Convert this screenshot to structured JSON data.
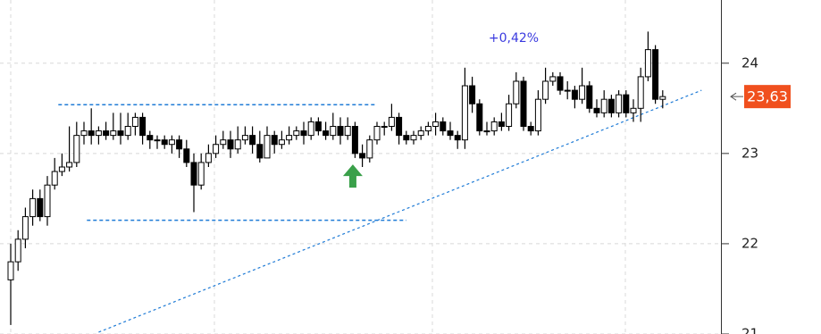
{
  "chart_data": {
    "type": "candlestick",
    "annotation": "+0,42%",
    "open": [
      21.6,
      21.8,
      22.05,
      22.3,
      22.5,
      22.3,
      22.65,
      22.8,
      22.85,
      22.9,
      23.2,
      23.25,
      23.2,
      23.25,
      23.2,
      23.25,
      23.2,
      23.3,
      23.4,
      23.2,
      23.15,
      23.15,
      23.1,
      23.15,
      23.05,
      22.9,
      22.65,
      22.9,
      23.0,
      23.1,
      23.15,
      23.05,
      23.15,
      23.2,
      23.1,
      22.95,
      23.2,
      23.1,
      23.15,
      23.2,
      23.25,
      23.2,
      23.35,
      23.25,
      23.2,
      23.3,
      23.2,
      23.3,
      23.0,
      22.95,
      23.15,
      23.3,
      23.3,
      23.4,
      23.2,
      23.15,
      23.2,
      23.25,
      23.3,
      23.35,
      23.25,
      23.2,
      23.15,
      23.75,
      23.55,
      23.25,
      23.25,
      23.35,
      23.3,
      23.55,
      23.8,
      23.3,
      23.25,
      23.6,
      23.8,
      23.85,
      23.7,
      23.7,
      23.6,
      23.75,
      23.5,
      23.45,
      23.6,
      23.45,
      23.65,
      23.45,
      23.5,
      23.85,
      24.15,
      23.6
    ],
    "high": [
      22.0,
      22.15,
      22.4,
      22.6,
      22.6,
      22.75,
      22.95,
      23.0,
      23.3,
      23.35,
      23.35,
      23.5,
      23.3,
      23.35,
      23.45,
      23.45,
      23.45,
      23.45,
      23.45,
      23.25,
      23.2,
      23.2,
      23.2,
      23.2,
      23.15,
      23.0,
      23.0,
      23.1,
      23.2,
      23.25,
      23.25,
      23.3,
      23.3,
      23.3,
      23.25,
      23.3,
      23.25,
      23.25,
      23.3,
      23.3,
      23.35,
      23.4,
      23.4,
      23.35,
      23.45,
      23.4,
      23.4,
      23.35,
      23.1,
      23.2,
      23.35,
      23.35,
      23.55,
      23.45,
      23.25,
      23.25,
      23.3,
      23.35,
      23.45,
      23.4,
      23.35,
      23.25,
      23.95,
      23.85,
      23.6,
      23.35,
      23.4,
      23.45,
      23.65,
      23.9,
      23.85,
      23.35,
      23.7,
      23.95,
      23.9,
      23.9,
      23.8,
      23.75,
      23.95,
      23.8,
      23.6,
      23.7,
      23.65,
      23.7,
      23.7,
      23.6,
      23.95,
      24.35,
      24.2,
      23.7
    ],
    "low": [
      21.1,
      21.7,
      21.95,
      22.2,
      22.25,
      22.2,
      22.6,
      22.75,
      22.8,
      22.85,
      23.1,
      23.1,
      23.1,
      23.15,
      23.15,
      23.1,
      23.15,
      23.2,
      23.1,
      23.05,
      23.05,
      23.05,
      23.0,
      22.95,
      22.85,
      22.35,
      22.6,
      22.85,
      22.95,
      23.05,
      22.95,
      23.0,
      23.1,
      23.0,
      22.9,
      22.95,
      23.0,
      23.05,
      23.1,
      23.15,
      23.1,
      23.15,
      23.2,
      23.15,
      23.15,
      23.1,
      23.15,
      22.95,
      22.85,
      22.9,
      23.1,
      23.2,
      23.25,
      23.1,
      23.1,
      23.1,
      23.15,
      23.2,
      23.2,
      23.2,
      23.15,
      23.05,
      23.05,
      23.45,
      23.2,
      23.2,
      23.2,
      23.25,
      23.25,
      23.5,
      23.25,
      23.2,
      23.2,
      23.55,
      23.75,
      23.65,
      23.6,
      23.5,
      23.55,
      23.45,
      23.4,
      23.4,
      23.4,
      23.4,
      23.4,
      23.35,
      23.35,
      23.8,
      23.55,
      23.5
    ],
    "close": [
      21.8,
      22.05,
      22.3,
      22.5,
      22.3,
      22.65,
      22.8,
      22.85,
      22.9,
      23.2,
      23.25,
      23.2,
      23.25,
      23.2,
      23.25,
      23.2,
      23.3,
      23.4,
      23.2,
      23.15,
      23.15,
      23.1,
      23.15,
      23.05,
      22.9,
      22.65,
      22.9,
      23.0,
      23.1,
      23.15,
      23.05,
      23.15,
      23.2,
      23.1,
      22.95,
      23.2,
      23.1,
      23.15,
      23.2,
      23.25,
      23.2,
      23.35,
      23.25,
      23.2,
      23.3,
      23.2,
      23.3,
      23.0,
      22.95,
      23.15,
      23.3,
      23.3,
      23.4,
      23.2,
      23.15,
      23.2,
      23.25,
      23.3,
      23.35,
      23.25,
      23.2,
      23.15,
      23.75,
      23.55,
      23.25,
      23.25,
      23.35,
      23.3,
      23.55,
      23.8,
      23.3,
      23.25,
      23.6,
      23.8,
      23.85,
      23.7,
      23.7,
      23.6,
      23.75,
      23.5,
      23.45,
      23.6,
      23.45,
      23.65,
      23.45,
      23.5,
      23.85,
      24.15,
      23.6,
      23.63
    ],
    "up_color": "#ffffff",
    "down_color": "#000000",
    "last_price": {
      "value": 23.63,
      "label": "23,63"
    },
    "last_price_color": "#f0501e",
    "levels": [
      {
        "value": 23.54,
        "from": 6.5,
        "to": 49.8
      },
      {
        "value": 22.26,
        "from": 10.4,
        "to": 54
      }
    ],
    "trendline": {
      "x": [
        12,
        94.3
      ],
      "y": [
        21.02,
        23.7
      ]
    },
    "line_color": "#1f7bd6",
    "signal": {
      "x": 46.7,
      "y": 22.75,
      "color": "#3aa04a"
    },
    "ylim": [
      21,
      24.7
    ],
    "yticks": [
      21,
      22,
      23,
      24
    ]
  }
}
